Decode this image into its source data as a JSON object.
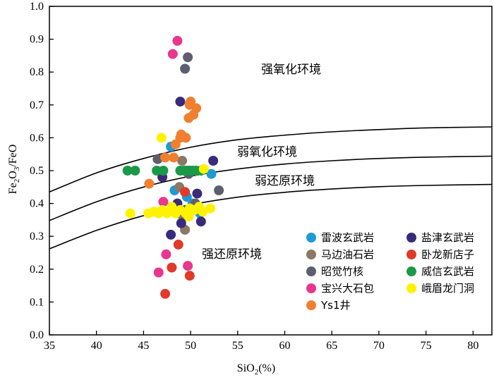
{
  "chart_data": {
    "type": "scatter",
    "xlabel_main": "SiO",
    "xlabel_sub": "2",
    "xlabel_tail": "(%)",
    "ylabel_a": "Fe",
    "ylabel_sub1": "2",
    "ylabel_b": "O",
    "ylabel_sub2": "3",
    "ylabel_c": "/FeO",
    "xlim": [
      35,
      82
    ],
    "ylim": [
      0.0,
      1.0
    ],
    "x_ticks": [
      "35",
      "40",
      "45",
      "50",
      "55",
      "60",
      "65",
      "70",
      "75",
      "80"
    ],
    "y_ticks": [
      "0.0",
      "0.1",
      "0.2",
      "0.3",
      "0.4",
      "0.5",
      "0.6",
      "0.7",
      "0.8",
      "0.9",
      "1.0"
    ],
    "regions": {
      "strong_oxidation": "强氧化环境",
      "weak_oxidation": "弱氧化环境",
      "weak_reduction": "弱还原环境",
      "strong_reduction": "强还原环境"
    },
    "boundary_curves": [
      [
        [
          35,
          0.435
        ],
        [
          40,
          0.493
        ],
        [
          45,
          0.537
        ],
        [
          50,
          0.571
        ],
        [
          55,
          0.594
        ],
        [
          60,
          0.608
        ],
        [
          65,
          0.618
        ],
        [
          70,
          0.625
        ],
        [
          75,
          0.63
        ],
        [
          82,
          0.633
        ]
      ],
      [
        [
          35,
          0.348
        ],
        [
          40,
          0.405
        ],
        [
          45,
          0.45
        ],
        [
          50,
          0.483
        ],
        [
          55,
          0.505
        ],
        [
          60,
          0.52
        ],
        [
          65,
          0.53
        ],
        [
          70,
          0.537
        ],
        [
          75,
          0.541
        ],
        [
          82,
          0.544
        ]
      ],
      [
        [
          35,
          0.262
        ],
        [
          40,
          0.318
        ],
        [
          45,
          0.363
        ],
        [
          50,
          0.396
        ],
        [
          55,
          0.419
        ],
        [
          60,
          0.434
        ],
        [
          65,
          0.444
        ],
        [
          70,
          0.451
        ],
        [
          75,
          0.455
        ],
        [
          82,
          0.458
        ]
      ]
    ],
    "series": [
      {
        "name": "雷波玄武岩",
        "color": "#1e9ad6",
        "points": [
          [
            47.9,
            0.573
          ],
          [
            48.3,
            0.44
          ],
          [
            49.6,
            0.42
          ],
          [
            50.2,
            0.4
          ],
          [
            50.8,
            0.39
          ],
          [
            51.0,
            0.37
          ],
          [
            52.2,
            0.49
          ],
          [
            49.7,
            0.38
          ]
        ]
      },
      {
        "name": "马边油石岩",
        "color": "#8b7866",
        "points": [
          [
            48.8,
            0.45
          ],
          [
            49.1,
            0.53
          ],
          [
            49.4,
            0.32
          ],
          [
            49.2,
            0.36
          ]
        ]
      },
      {
        "name": "昭觉竹核",
        "color": "#5e5e6e",
        "points": [
          [
            46.5,
            0.535
          ],
          [
            49.4,
            0.81
          ],
          [
            49.7,
            0.845
          ],
          [
            49.8,
            0.49
          ],
          [
            53.0,
            0.44
          ],
          [
            50.5,
            0.4
          ]
        ]
      },
      {
        "name": "宝兴大石包",
        "color": "#e8378c",
        "points": [
          [
            48.1,
            0.855
          ],
          [
            48.6,
            0.895
          ],
          [
            47.1,
            0.405
          ],
          [
            47.4,
            0.245
          ],
          [
            46.6,
            0.19
          ],
          [
            49.7,
            0.21
          ]
        ]
      },
      {
        "name": "Ys1井",
        "color": "#f08030",
        "points": [
          [
            45.6,
            0.46
          ],
          [
            47.3,
            0.54
          ],
          [
            48.2,
            0.54
          ],
          [
            48.4,
            0.58
          ],
          [
            48.9,
            0.6
          ],
          [
            49.0,
            0.61
          ],
          [
            49.5,
            0.6
          ],
          [
            49.8,
            0.66
          ],
          [
            50.0,
            0.71
          ],
          [
            50.3,
            0.67
          ],
          [
            50.6,
            0.69
          ],
          [
            49.9,
            0.7
          ]
        ]
      },
      {
        "name": "盐津玄武岩",
        "color": "#3a2a7a",
        "points": [
          [
            48.9,
            0.71
          ],
          [
            47.0,
            0.48
          ],
          [
            47.9,
            0.305
          ],
          [
            48.6,
            0.4
          ],
          [
            49.0,
            0.34
          ],
          [
            50.7,
            0.43
          ],
          [
            51.1,
            0.345
          ],
          [
            52.4,
            0.53
          ]
        ]
      },
      {
        "name": "卧龙新店子",
        "color": "#e03a2a",
        "points": [
          [
            47.3,
            0.125
          ],
          [
            48.0,
            0.205
          ],
          [
            48.7,
            0.275
          ],
          [
            49.4,
            0.435
          ],
          [
            49.9,
            0.18
          ]
        ]
      },
      {
        "name": "威信玄武岩",
        "color": "#1a9a48",
        "points": [
          [
            43.3,
            0.5
          ],
          [
            44.1,
            0.5
          ],
          [
            46.4,
            0.5
          ],
          [
            47.1,
            0.5
          ],
          [
            48.9,
            0.5
          ],
          [
            49.3,
            0.5
          ],
          [
            49.6,
            0.5
          ],
          [
            49.9,
            0.5
          ],
          [
            50.2,
            0.5
          ],
          [
            50.6,
            0.5
          ],
          [
            51.1,
            0.5
          ]
        ]
      },
      {
        "name": "峨眉龙门洞",
        "color": "#fff200",
        "points": [
          [
            43.6,
            0.37
          ],
          [
            45.5,
            0.37
          ],
          [
            46.1,
            0.375
          ],
          [
            46.6,
            0.37
          ],
          [
            47.0,
            0.38
          ],
          [
            47.5,
            0.37
          ],
          [
            48.0,
            0.39
          ],
          [
            48.4,
            0.37
          ],
          [
            48.9,
            0.38
          ],
          [
            49.5,
            0.37
          ],
          [
            49.9,
            0.385
          ],
          [
            50.4,
            0.38
          ],
          [
            50.9,
            0.39
          ],
          [
            51.3,
            0.375
          ],
          [
            52.1,
            0.385
          ],
          [
            46.9,
            0.6
          ],
          [
            51.4,
            0.505
          ],
          [
            49.8,
            0.36
          ]
        ]
      }
    ],
    "legend": {
      "placement": "bottom-right",
      "columns": [
        [
          "雷波玄武岩",
          "马边油石岩",
          "昭觉竹核",
          "宝兴大石包",
          "Ys1井"
        ],
        [
          "盐津玄武岩",
          "卧龙新店子",
          "威信玄武岩",
          "峨眉龙门洞"
        ]
      ]
    },
    "grid": false
  }
}
